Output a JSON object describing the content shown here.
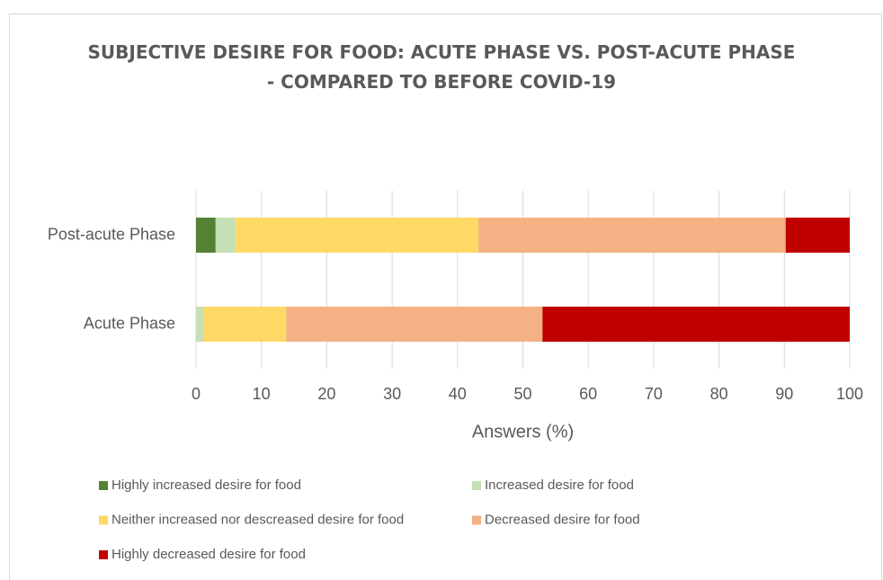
{
  "chart_data": {
    "type": "stacked_barh",
    "title": [
      "SUBJECTIVE DESIRE FOR FOOD: ACUTE PHASE VS. POST-ACUTE PHASE",
      "- COMPARED TO BEFORE COVID-19"
    ],
    "x_label": "Answers (%)",
    "categories": [
      "Post-acute Phase",
      "Acute Phase"
    ],
    "series": [
      {
        "name": "Highly increased desire for food",
        "color": "#548235",
        "values": [
          3,
          0
        ]
      },
      {
        "name": "Increased desire for food",
        "color": "#c5e0b4",
        "values": [
          3,
          1.1
        ]
      },
      {
        "name": "Neither increased nor descreased desire for food",
        "color": "#ffd966",
        "values": [
          37.2,
          12.7
        ]
      },
      {
        "name": "Decreased desire for food",
        "color": "#f4b183",
        "values": [
          47,
          39.2
        ]
      },
      {
        "name": "Highly decreased desire for food",
        "color": "#c00000",
        "values": [
          9.8,
          47
        ]
      }
    ],
    "xlim": [
      0,
      100
    ],
    "xticks": [
      0,
      10,
      20,
      30,
      40,
      50,
      60,
      70,
      80,
      90,
      100
    ],
    "grid": true,
    "legend": "bottom"
  }
}
